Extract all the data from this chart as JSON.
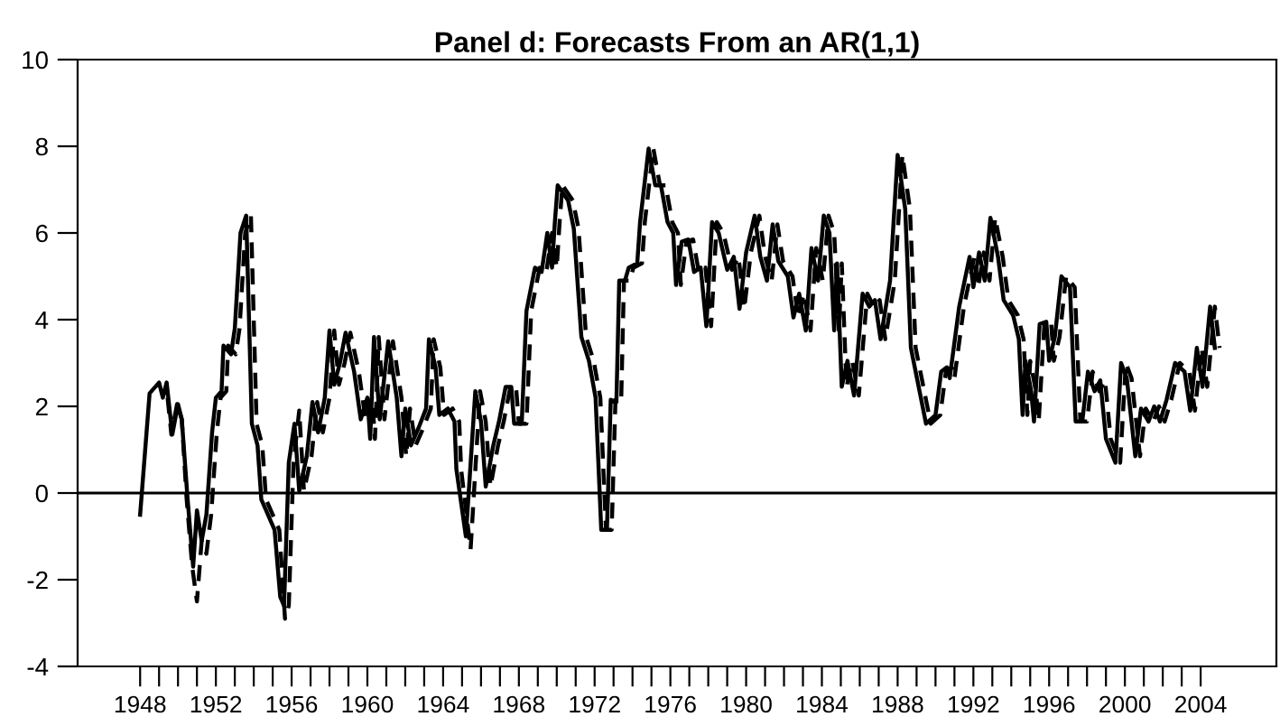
{
  "chart_data": {
    "type": "line",
    "title": "Panel d: Forecasts From an AR(1,1)",
    "xlim": [
      1944.7,
      2008.0
    ],
    "ylim": [
      -4,
      10
    ],
    "yticks": [
      -4,
      -2,
      0,
      2,
      4,
      6,
      8,
      10
    ],
    "xticks": [
      1948,
      {
        "value": 1949,
        "label": null
      },
      {
        "value": 1950,
        "label": null
      },
      {
        "value": 1951,
        "label": null
      },
      1952,
      {
        "value": 1953,
        "label": null
      },
      {
        "value": 1954,
        "label": null
      },
      {
        "value": 1955,
        "label": null
      },
      1956,
      {
        "value": 1957,
        "label": null
      },
      {
        "value": 1958,
        "label": null
      },
      {
        "value": 1959,
        "label": null
      },
      1960,
      {
        "value": 1961,
        "label": null
      },
      {
        "value": 1962,
        "label": null
      },
      {
        "value": 1963,
        "label": null
      },
      1964,
      {
        "value": 1965,
        "label": null
      },
      {
        "value": 1966,
        "label": null
      },
      {
        "value": 1967,
        "label": null
      },
      1968,
      {
        "value": 1969,
        "label": null
      },
      {
        "value": 1970,
        "label": null
      },
      {
        "value": 1971,
        "label": null
      },
      1972,
      {
        "value": 1973,
        "label": null
      },
      {
        "value": 1974,
        "label": null
      },
      {
        "value": 1975,
        "label": null
      },
      1976,
      {
        "value": 1977,
        "label": null
      },
      {
        "value": 1978,
        "label": null
      },
      {
        "value": 1979,
        "label": null
      },
      1980,
      {
        "value": 1981,
        "label": null
      },
      {
        "value": 1982,
        "label": null
      },
      {
        "value": 1983,
        "label": null
      },
      1984,
      {
        "value": 1985,
        "label": null
      },
      {
        "value": 1986,
        "label": null
      },
      {
        "value": 1987,
        "label": null
      },
      1988,
      {
        "value": 1989,
        "label": null
      },
      {
        "value": 1990,
        "label": null
      },
      {
        "value": 1991,
        "label": null
      },
      1992,
      {
        "value": 1993,
        "label": null
      },
      {
        "value": 1994,
        "label": null
      },
      {
        "value": 1995,
        "label": null
      },
      1996,
      {
        "value": 1997,
        "label": null
      },
      {
        "value": 1998,
        "label": null
      },
      {
        "value": 1999,
        "label": null
      },
      2000,
      {
        "value": 2001,
        "label": null
      },
      {
        "value": 2002,
        "label": null
      },
      {
        "value": 2003,
        "label": null
      },
      2004
    ],
    "grid": false,
    "legend": false,
    "marker": "none",
    "ref_lines": [
      {
        "axis": "y",
        "value": 0,
        "label": null,
        "color": "#000000",
        "line_style": "solid"
      }
    ],
    "series": [
      {
        "color": "#000000",
        "line_style": "solid",
        "x": [
          1948.0,
          1948.5,
          1949.0,
          1949.2,
          1949.4,
          1949.7,
          1950.0,
          1950.2,
          1950.5,
          1950.8,
          1951.0,
          1951.25,
          1951.5,
          1951.8,
          1952.0,
          1952.3,
          1952.4,
          1952.8,
          1953.0,
          1953.3,
          1953.6,
          1953.9,
          1954.2,
          1954.4,
          1954.8,
          1955.1,
          1955.4,
          1955.6,
          1955.85,
          1956.15,
          1956.4,
          1956.8,
          1957.1,
          1957.4,
          1957.75,
          1958.0,
          1958.25,
          1958.55,
          1958.85,
          1959.3,
          1959.65,
          1960.0,
          1960.15,
          1960.35,
          1960.65,
          1961.1,
          1961.55,
          1961.8,
          1962.0,
          1962.3,
          1962.7,
          1963.1,
          1963.25,
          1963.6,
          1963.8,
          1964.25,
          1964.6,
          1964.7,
          1965.2,
          1965.7,
          1966.0,
          1966.25,
          1966.65,
          1966.95,
          1967.3,
          1967.6,
          1967.75,
          1968.15,
          1968.4,
          1968.85,
          1969.2,
          1969.5,
          1969.75,
          1969.9,
          1970.05,
          1970.6,
          1970.9,
          1971.3,
          1971.7,
          1972.05,
          1972.35,
          1972.65,
          1972.85,
          1973.15,
          1973.3,
          1973.6,
          1973.8,
          1974.25,
          1974.4,
          1974.85,
          1975.2,
          1975.5,
          1975.85,
          1976.15,
          1976.3,
          1976.6,
          1976.95,
          1977.25,
          1977.6,
          1977.9,
          1978.2,
          1978.55,
          1979.0,
          1979.35,
          1979.65,
          1980.0,
          1980.45,
          1980.75,
          1981.1,
          1981.4,
          1981.7,
          1982.2,
          1982.5,
          1982.8,
          1983.15,
          1983.45,
          1983.8,
          1984.1,
          1984.4,
          1984.65,
          1984.8,
          1985.05,
          1985.35,
          1985.7,
          1986.15,
          1986.5,
          1986.8,
          1987.1,
          1987.6,
          1988.0,
          1988.4,
          1988.7,
          1989.5,
          1990.0,
          1990.3,
          1990.6,
          1990.75,
          1991.25,
          1991.8,
          1992.0,
          1992.3,
          1992.6,
          1992.9,
          1993.3,
          1993.6,
          1994.1,
          1994.4,
          1994.6,
          1994.75,
          1995.05,
          1995.2,
          1995.5,
          1995.85,
          1996.0,
          1996.3,
          1996.65,
          1997.1,
          1997.4,
          1997.75,
          1998.05,
          1998.4,
          1998.7,
          1999.0,
          1999.5,
          1999.8,
          2000.1,
          2000.55,
          2000.85,
          2001.25,
          2001.55,
          2001.85,
          2002.2,
          2002.65,
          2003.15,
          2003.45,
          2003.8,
          2004.1,
          2004.5,
          2004.75
        ],
        "values": [
          -0.5,
          2.3,
          2.55,
          2.2,
          2.55,
          1.35,
          2.05,
          1.7,
          -0.1,
          -1.7,
          -0.4,
          -1.1,
          -0.5,
          1.4,
          2.2,
          2.35,
          3.4,
          3.2,
          3.8,
          6.0,
          6.4,
          1.6,
          1.1,
          -0.15,
          -0.55,
          -0.85,
          -2.4,
          -2.6,
          0.7,
          1.6,
          0.05,
          0.85,
          2.1,
          1.4,
          2.2,
          3.75,
          2.5,
          3.0,
          3.7,
          2.8,
          1.7,
          2.2,
          1.25,
          3.6,
          1.7,
          3.5,
          2.2,
          0.85,
          1.95,
          1.1,
          1.5,
          1.95,
          3.55,
          2.9,
          1.8,
          1.95,
          1.65,
          0.55,
          -1.0,
          2.35,
          1.65,
          0.15,
          1.1,
          1.65,
          2.45,
          2.45,
          1.6,
          1.6,
          4.2,
          5.2,
          5.1,
          6.0,
          5.2,
          6.25,
          7.1,
          6.75,
          6.1,
          3.6,
          3.05,
          2.2,
          -0.85,
          -0.85,
          2.15,
          2.1,
          4.9,
          4.9,
          5.2,
          5.3,
          6.25,
          7.95,
          7.1,
          7.1,
          6.25,
          6.0,
          4.8,
          5.8,
          5.85,
          5.1,
          5.2,
          3.85,
          6.25,
          6.0,
          5.15,
          5.45,
          4.25,
          5.55,
          6.4,
          5.45,
          4.9,
          6.2,
          5.35,
          5.0,
          4.05,
          4.6,
          3.75,
          5.65,
          4.9,
          6.4,
          6.0,
          3.75,
          5.3,
          2.45,
          3.05,
          2.25,
          4.6,
          4.3,
          4.45,
          3.55,
          4.9,
          7.8,
          6.55,
          3.35,
          1.6,
          1.8,
          2.8,
          2.9,
          2.65,
          4.3,
          5.45,
          4.75,
          5.55,
          4.9,
          6.35,
          5.45,
          4.45,
          4.1,
          3.55,
          1.8,
          3.05,
          2.35,
          1.65,
          3.9,
          3.95,
          3.05,
          3.6,
          5.0,
          4.75,
          1.65,
          1.65,
          2.8,
          2.35,
          2.6,
          1.25,
          0.7,
          3.0,
          2.65,
          0.85,
          1.95,
          1.65,
          2.0,
          1.65,
          2.15,
          3.0,
          2.8,
          1.9,
          3.35,
          2.45,
          4.3,
          3.35
        ]
      },
      {
        "color": "#000000",
        "line_style": "dashed",
        "x": [
          1949.45,
          1949.65,
          1949.95,
          1950.2,
          1950.45,
          1950.75,
          1951.0,
          1951.25,
          1951.5,
          1951.75,
          1952.05,
          1952.25,
          1952.55,
          1952.65,
          1953.05,
          1953.25,
          1953.55,
          1953.85,
          1954.15,
          1954.45,
          1954.65,
          1955.05,
          1955.35,
          1955.65,
          1955.85,
          1956.1,
          1956.4,
          1956.65,
          1957.05,
          1957.35,
          1957.65,
          1958.0,
          1958.25,
          1958.5,
          1958.8,
          1959.1,
          1959.55,
          1959.9,
          1960.25,
          1960.4,
          1960.6,
          1960.9,
          1961.35,
          1961.8,
          1962.05,
          1962.25,
          1962.55,
          1962.95,
          1963.35,
          1963.5,
          1963.85,
          1964.05,
          1964.5,
          1964.85,
          1964.95,
          1965.45,
          1965.95,
          1966.25,
          1966.5,
          1966.9,
          1967.2,
          1967.55,
          1967.85,
          1968.0,
          1968.4,
          1968.65,
          1969.1,
          1969.45,
          1969.75,
          1970.0,
          1970.15,
          1970.3,
          1970.85,
          1971.15,
          1971.55,
          1971.95,
          1972.3,
          1972.6,
          1972.9,
          1973.1,
          1973.4,
          1973.55,
          1973.85,
          1974.05,
          1974.5,
          1974.65,
          1975.1,
          1975.45,
          1975.75,
          1976.1,
          1976.4,
          1976.55,
          1976.85,
          1977.2,
          1977.5,
          1977.85,
          1978.15,
          1978.45,
          1978.8,
          1979.25,
          1979.6,
          1979.9,
          1980.25,
          1980.7,
          1981.0,
          1981.35,
          1981.65,
          1981.95,
          1982.45,
          1982.75,
          1983.05,
          1983.4,
          1983.7,
          1984.05,
          1984.35,
          1984.65,
          1984.9,
          1985.05,
          1985.3,
          1985.6,
          1985.95,
          1986.4,
          1986.75,
          1987.05,
          1987.35,
          1987.85,
          1988.25,
          1988.65,
          1988.95,
          1989.75,
          1990.25,
          1990.55,
          1990.85,
          1991.0,
          1991.5,
          1992.05,
          1992.25,
          1992.55,
          1992.85,
          1993.15,
          1993.55,
          1993.85,
          1994.35,
          1994.65,
          1994.85,
          1995.0,
          1995.3,
          1995.45,
          1995.75,
          1996.1,
          1996.25,
          1996.55,
          1996.9,
          1997.35,
          1997.65,
          1998.0,
          1998.3,
          1998.65,
          1998.95,
          1999.25,
          1999.75,
          2000.05,
          2000.35,
          2000.8,
          2001.1,
          2001.5,
          2001.8,
          2002.1,
          2002.45,
          2002.9,
          2003.4,
          2003.7,
          2004.05,
          2004.35,
          2004.75,
          2005.0
        ],
        "values": [
          2.2,
          1.35,
          2.05,
          1.7,
          -0.1,
          -1.7,
          -2.5,
          -1.1,
          -1.4,
          -0.5,
          1.4,
          2.2,
          2.35,
          3.4,
          3.2,
          3.8,
          6.0,
          6.4,
          1.6,
          1.1,
          -0.15,
          -0.55,
          -0.85,
          -2.9,
          -2.6,
          0.7,
          1.9,
          0.05,
          0.85,
          2.1,
          1.4,
          2.2,
          3.75,
          2.5,
          3.0,
          3.7,
          2.8,
          1.7,
          2.2,
          1.25,
          3.6,
          1.7,
          3.5,
          2.2,
          0.85,
          1.95,
          1.1,
          1.5,
          1.95,
          3.55,
          2.9,
          1.8,
          1.95,
          1.65,
          0.55,
          -1.3,
          2.35,
          1.65,
          0.15,
          1.1,
          1.65,
          2.45,
          2.45,
          1.6,
          1.6,
          4.2,
          5.2,
          5.1,
          6.0,
          5.2,
          6.25,
          7.1,
          6.75,
          6.1,
          3.6,
          3.05,
          2.2,
          -0.85,
          -0.85,
          2.15,
          2.1,
          4.9,
          4.9,
          5.2,
          5.3,
          6.25,
          7.95,
          7.1,
          7.1,
          6.25,
          6.0,
          4.8,
          5.8,
          5.85,
          5.1,
          5.2,
          3.85,
          6.25,
          6.0,
          5.15,
          5.45,
          4.25,
          5.55,
          6.4,
          5.45,
          4.9,
          6.2,
          5.35,
          5.0,
          4.05,
          4.6,
          3.75,
          5.65,
          4.9,
          6.4,
          6.0,
          3.75,
          5.3,
          2.45,
          3.05,
          2.25,
          4.6,
          4.3,
          4.45,
          3.55,
          4.9,
          7.8,
          6.55,
          3.35,
          1.6,
          1.8,
          2.8,
          2.9,
          2.65,
          4.3,
          5.45,
          4.75,
          5.55,
          4.9,
          6.35,
          5.45,
          4.45,
          4.1,
          3.55,
          1.8,
          3.05,
          2.35,
          1.65,
          3.9,
          3.95,
          3.05,
          3.6,
          5.0,
          4.75,
          1.65,
          1.65,
          2.8,
          2.35,
          2.6,
          1.25,
          0.7,
          3.0,
          2.65,
          0.85,
          1.95,
          1.65,
          2.0,
          1.65,
          2.15,
          3.0,
          2.8,
          1.9,
          3.35,
          2.45,
          4.3,
          3.35
        ]
      }
    ]
  }
}
